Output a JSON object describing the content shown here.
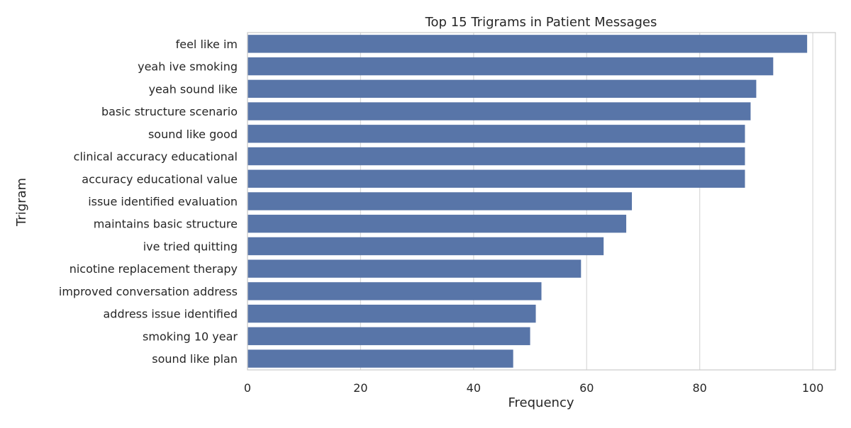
{
  "chart_data": {
    "type": "bar",
    "orientation": "horizontal",
    "title": "Top 15 Trigrams in Patient Messages",
    "xlabel": "Frequency",
    "ylabel": "Trigram",
    "xlim": [
      0,
      104
    ],
    "xticks": [
      0,
      20,
      40,
      60,
      80,
      100
    ],
    "grid": true,
    "bar_color": "#5875a8",
    "grid_color": "#d9d9d9",
    "categories": [
      "feel like im",
      "yeah ive smoking",
      "yeah sound like",
      "basic structure scenario",
      "sound like good",
      "clinical accuracy educational",
      "accuracy educational value",
      "issue identified evaluation",
      "maintains basic structure",
      "ive tried quitting",
      "nicotine replacement therapy",
      "improved conversation address",
      "address issue identified",
      "smoking 10 year",
      "sound like plan"
    ],
    "values": [
      99,
      93,
      90,
      89,
      88,
      88,
      88,
      68,
      67,
      63,
      59,
      52,
      51,
      50,
      47
    ]
  }
}
